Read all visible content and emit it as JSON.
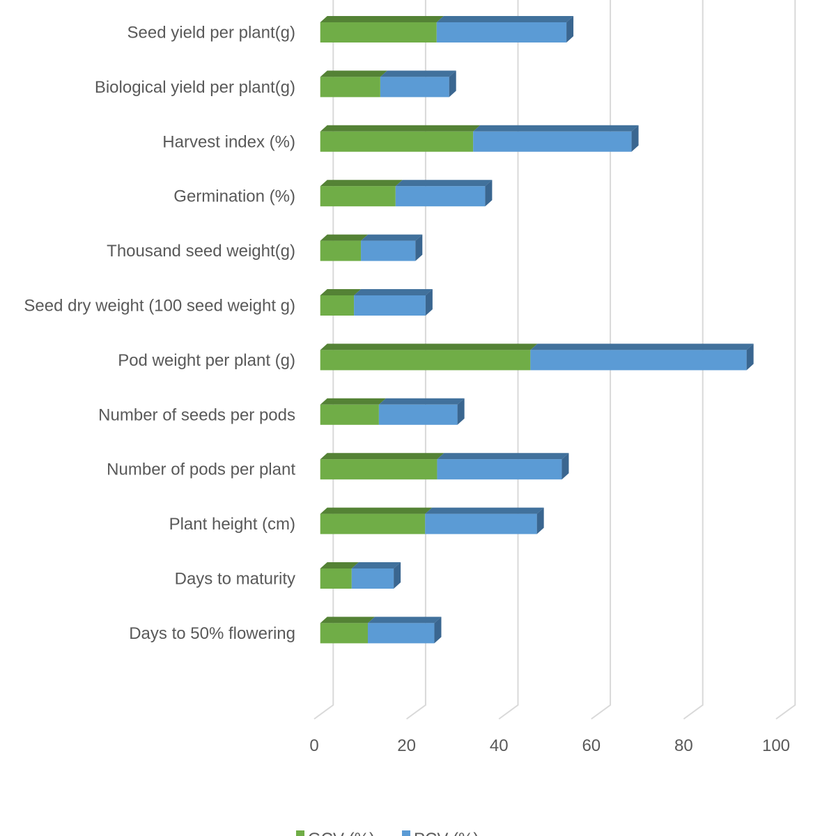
{
  "chart_data": {
    "type": "bar",
    "orientation": "horizontal",
    "stacked": true,
    "style": "3d",
    "categories": [
      "Seed yield per plant(g)",
      "Biological yield per plant(g)",
      "Harvest index (%)",
      "Germination (%)",
      "Thousand seed weight(g)",
      "Seed dry weight (100 seed weight g)",
      "Pod weight per plant (g)",
      "Number of seeds per pods",
      "Number of pods per plant",
      "Plant height (cm)",
      "Days to maturity",
      "Days to 50% flowering"
    ],
    "series": [
      {
        "name": "GCV (%)",
        "color": "#70AD47",
        "values": [
          25.2,
          13.0,
          33.1,
          16.3,
          8.8,
          7.3,
          45.5,
          12.7,
          25.3,
          22.7,
          6.8,
          10.3
        ]
      },
      {
        "name": "PCV (%)",
        "color": "#5B9BD5",
        "values": [
          28.1,
          14.9,
          34.3,
          19.4,
          11.8,
          15.5,
          46.8,
          17.0,
          27.0,
          24.2,
          9.1,
          14.4
        ]
      }
    ],
    "xlim": [
      0,
      100
    ],
    "xticks": [
      "0",
      "20",
      "40",
      "60",
      "80",
      "100"
    ],
    "grid": true,
    "legend": "bottom"
  }
}
